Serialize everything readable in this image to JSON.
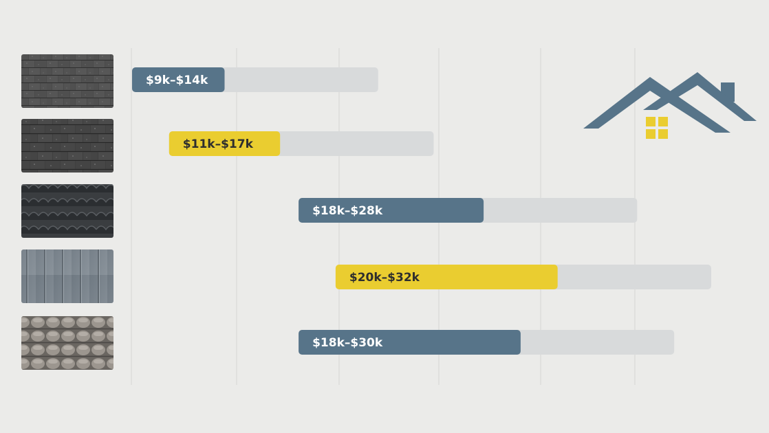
{
  "colors": {
    "background": "#ebebe9",
    "gridline": "#d6d6d3",
    "track": "#d8dadb",
    "steel_blue": "#577489",
    "yellow": "#eacd30",
    "label_on_blue": "#ffffff",
    "label_on_yellow": "#2e2e2e",
    "house_roof": "#577489",
    "house_window": "#eacd30"
  },
  "chart_data": {
    "type": "bar",
    "orientation": "horizontal-range",
    "grid": true,
    "legend": "none",
    "rows": [
      {
        "swatch": "asphalt-shingle-texture",
        "label": "$9k–$14k",
        "low": 9,
        "high": 14,
        "color": "#577489",
        "label_color": "#ffffff"
      },
      {
        "swatch": "architectural-shingle-texture",
        "label": "$11k–$17k",
        "low": 11,
        "high": 17,
        "color": "#eacd30",
        "label_color": "#2e2e2e"
      },
      {
        "swatch": "stone-coated-steel-texture",
        "label": "$18k–$28k",
        "low": 18,
        "high": 28,
        "color": "#577489",
        "label_color": "#ffffff"
      },
      {
        "swatch": "standing-seam-metal-texture",
        "label": "$20k–$32k",
        "low": 20,
        "high": 32,
        "color": "#eacd30",
        "label_color": "#2e2e2e"
      },
      {
        "swatch": "clay-tile-texture",
        "label": "$18k–$30k",
        "low": 18,
        "high": 30,
        "color": "#577489",
        "label_color": "#ffffff"
      }
    ]
  },
  "decorations": {
    "house_icon": "house-roof-icon"
  }
}
